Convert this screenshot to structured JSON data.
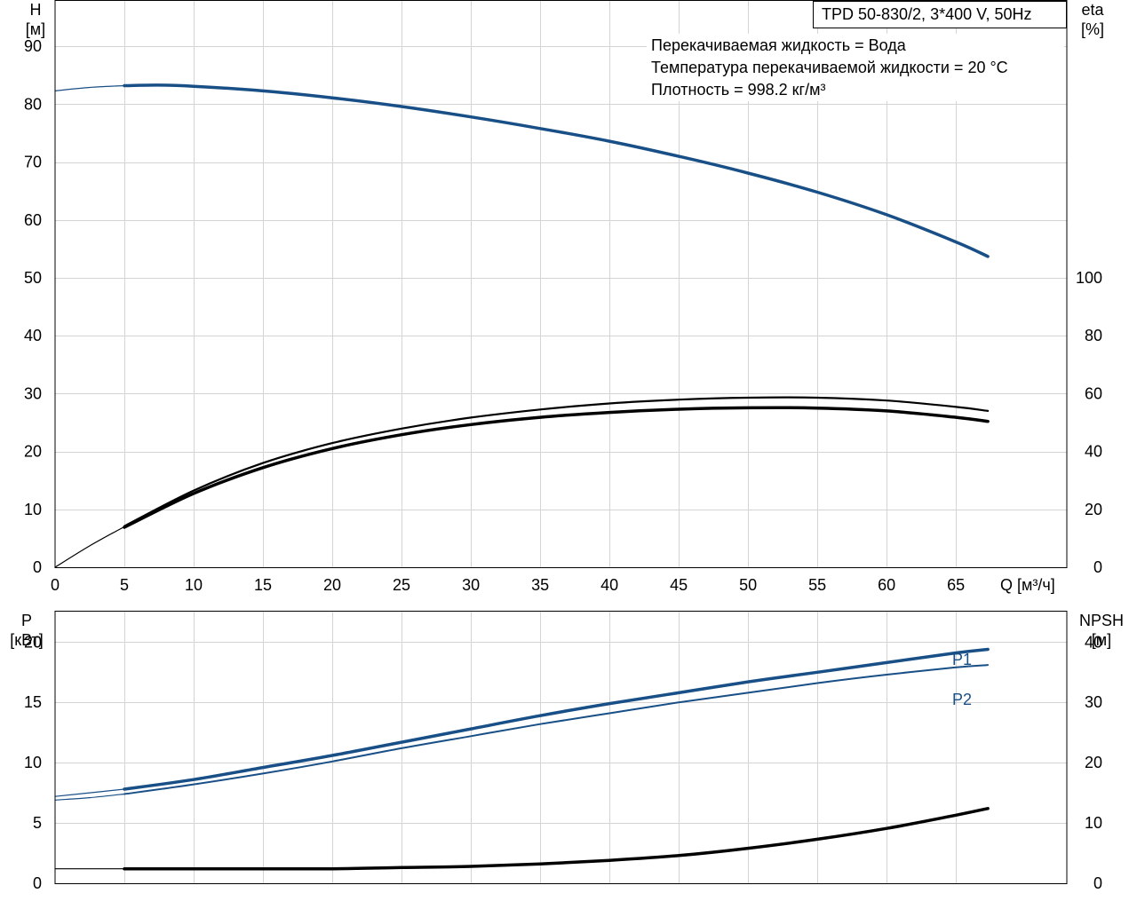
{
  "pump_label": "TPD 50-830/2, 3*400 V, 50Hz",
  "info_lines": [
    "Перекачиваемая жидкость = Вода",
    "Температура перекачиваемой жидкости = 20 °C",
    "Плотность = 998.2 кг/м³"
  ],
  "colors": {
    "blue": "#184f86",
    "black": "#000000",
    "grid": "#d4d4d4"
  },
  "chart_data": [
    {
      "type": "line",
      "panel": "top",
      "xlabel": "Q [м³/ч]",
      "xlim": [
        0,
        73
      ],
      "xticks": [
        0,
        5,
        10,
        15,
        20,
        25,
        30,
        35,
        40,
        45,
        50,
        55,
        60,
        65
      ],
      "left_axis": {
        "label_line1": "H",
        "label_line2": "[м]",
        "lim": [
          0,
          98
        ],
        "ticks": [
          0,
          10,
          20,
          30,
          40,
          50,
          60,
          70,
          80,
          90
        ]
      },
      "right_axis": {
        "label_line1": "eta",
        "label_line2": "[%]",
        "lim": [
          0,
          196
        ],
        "ticks": [
          0,
          20,
          40,
          60,
          80,
          100
        ]
      },
      "grid": true,
      "series": [
        {
          "axis": "left",
          "color": "#184f86",
          "width": 3.5,
          "points": [
            [
              5,
              83.2
            ],
            [
              7.5,
              83.3
            ],
            [
              10,
              83.1
            ],
            [
              15,
              82.3
            ],
            [
              20,
              81.1
            ],
            [
              25,
              79.6
            ],
            [
              30,
              77.8
            ],
            [
              35,
              75.8
            ],
            [
              40,
              73.6
            ],
            [
              45,
              71.0
            ],
            [
              50,
              68.1
            ],
            [
              55,
              64.8
            ],
            [
              60,
              60.9
            ],
            [
              65,
              56.2
            ],
            [
              67.3,
              53.7
            ]
          ]
        },
        {
          "axis": "left",
          "color": "#184f86",
          "width": 1.2,
          "points": [
            [
              0,
              82.3
            ],
            [
              2.5,
              82.9
            ],
            [
              5,
              83.2
            ]
          ]
        },
        {
          "axis": "right",
          "color": "#000000",
          "width": 2.2,
          "points": [
            [
              5,
              14.2
            ],
            [
              10,
              26.5
            ],
            [
              15,
              36.0
            ],
            [
              20,
              42.9
            ],
            [
              25,
              47.9
            ],
            [
              30,
              51.7
            ],
            [
              35,
              54.5
            ],
            [
              40,
              56.6
            ],
            [
              45,
              57.9
            ],
            [
              50,
              58.6
            ],
            [
              55,
              58.6
            ],
            [
              60,
              57.6
            ],
            [
              65,
              55.4
            ],
            [
              67.3,
              54.0
            ]
          ]
        },
        {
          "axis": "right",
          "color": "#000000",
          "width": 3.5,
          "points": [
            [
              5,
              13.8
            ],
            [
              10,
              25.5
            ],
            [
              15,
              34.4
            ],
            [
              20,
              41.0
            ],
            [
              25,
              45.8
            ],
            [
              30,
              49.3
            ],
            [
              35,
              51.8
            ],
            [
              40,
              53.5
            ],
            [
              45,
              54.6
            ],
            [
              50,
              55.1
            ],
            [
              55,
              55.0
            ],
            [
              60,
              54.0
            ],
            [
              65,
              51.8
            ],
            [
              67.3,
              50.4
            ]
          ]
        },
        {
          "axis": "right",
          "color": "#000000",
          "width": 1.2,
          "points": [
            [
              0,
              0
            ],
            [
              2.5,
              7.4
            ],
            [
              5,
              14.0
            ]
          ]
        }
      ]
    },
    {
      "type": "line",
      "panel": "bottom",
      "xlim": [
        0,
        73
      ],
      "left_axis": {
        "label_line1": "P",
        "label_line2": "[кВт]",
        "lim": [
          0,
          22.6
        ],
        "ticks": [
          0,
          5,
          10,
          15,
          20
        ]
      },
      "right_axis": {
        "label_line1": "NPSH",
        "label_line2": "[м]",
        "lim": [
          0,
          45.2
        ],
        "ticks": [
          0,
          10,
          20,
          30,
          40
        ]
      },
      "grid": true,
      "series": [
        {
          "name": "P1",
          "axis": "left",
          "color": "#184f86",
          "width": 3.5,
          "points": [
            [
              5,
              7.8
            ],
            [
              10,
              8.6
            ],
            [
              15,
              9.6
            ],
            [
              20,
              10.6
            ],
            [
              25,
              11.7
            ],
            [
              30,
              12.8
            ],
            [
              35,
              13.9
            ],
            [
              40,
              14.9
            ],
            [
              45,
              15.8
            ],
            [
              50,
              16.7
            ],
            [
              55,
              17.5
            ],
            [
              60,
              18.3
            ],
            [
              65,
              19.1
            ],
            [
              67.3,
              19.4
            ]
          ]
        },
        {
          "name": "P2",
          "axis": "left",
          "color": "#184f86",
          "width": 2,
          "points": [
            [
              5,
              7.4
            ],
            [
              10,
              8.2
            ],
            [
              15,
              9.1
            ],
            [
              20,
              10.1
            ],
            [
              25,
              11.2
            ],
            [
              30,
              12.2
            ],
            [
              35,
              13.2
            ],
            [
              40,
              14.1
            ],
            [
              45,
              15.0
            ],
            [
              50,
              15.8
            ],
            [
              55,
              16.6
            ],
            [
              60,
              17.3
            ],
            [
              65,
              17.9
            ],
            [
              67.3,
              18.1
            ]
          ]
        },
        {
          "axis": "left",
          "color": "#184f86",
          "width": 1.2,
          "points": [
            [
              0,
              7.2
            ],
            [
              2.5,
              7.5
            ],
            [
              5,
              7.8
            ]
          ]
        },
        {
          "axis": "left",
          "color": "#184f86",
          "width": 1.2,
          "points": [
            [
              0,
              6.9
            ],
            [
              2.5,
              7.1
            ],
            [
              5,
              7.4
            ]
          ]
        },
        {
          "axis": "right",
          "color": "#000000",
          "width": 3.5,
          "points": [
            [
              5,
              2.4
            ],
            [
              10,
              2.4
            ],
            [
              15,
              2.4
            ],
            [
              20,
              2.4
            ],
            [
              25,
              2.6
            ],
            [
              30,
              2.8
            ],
            [
              35,
              3.2
            ],
            [
              40,
              3.8
            ],
            [
              45,
              4.6
            ],
            [
              50,
              5.8
            ],
            [
              55,
              7.3
            ],
            [
              60,
              9.1
            ],
            [
              65,
              11.3
            ],
            [
              67.3,
              12.4
            ]
          ]
        },
        {
          "axis": "right",
          "color": "#000000",
          "width": 1.2,
          "points": [
            [
              0,
              2.4
            ],
            [
              5,
              2.4
            ]
          ]
        }
      ]
    }
  ]
}
